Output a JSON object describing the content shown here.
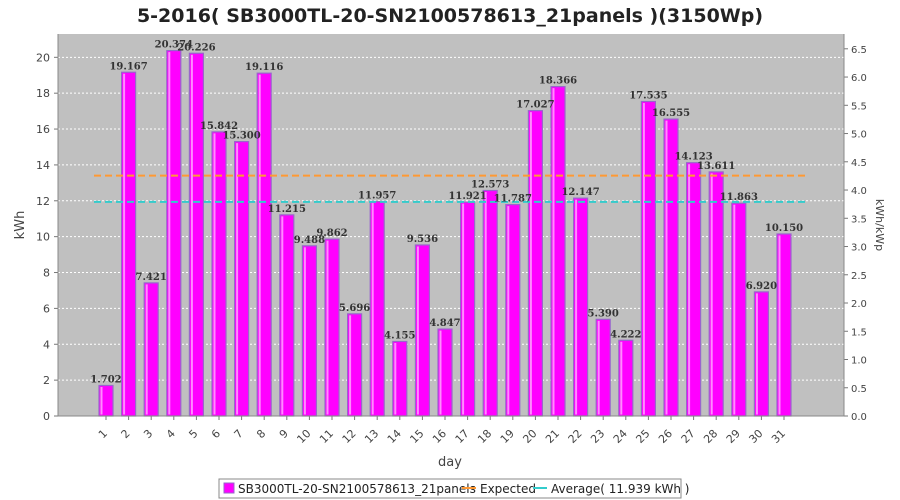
{
  "chart_data": {
    "type": "bar",
    "title": "5-2016( SB3000TL-20-SN2100578613_21panels )(3150Wp)",
    "xlabel": "day",
    "ylabel": "kWh",
    "y2label": "kWh/kWp",
    "categories": [
      "1",
      "2",
      "3",
      "4",
      "5",
      "6",
      "7",
      "8",
      "9",
      "10",
      "11",
      "12",
      "13",
      "14",
      "15",
      "16",
      "17",
      "18",
      "19",
      "20",
      "21",
      "22",
      "23",
      "24",
      "25",
      "26",
      "27",
      "28",
      "29",
      "30",
      "31"
    ],
    "series": [
      {
        "name": "SB3000TL-20-SN2100578613_21panels",
        "color": "#ff00ff",
        "values": [
          1.702,
          19.167,
          7.421,
          20.374,
          20.226,
          15.842,
          15.3,
          19.116,
          11.215,
          9.488,
          9.862,
          5.696,
          11.957,
          4.155,
          9.536,
          4.847,
          11.921,
          12.573,
          11.787,
          17.027,
          18.366,
          12.147,
          5.39,
          4.222,
          17.535,
          16.555,
          14.123,
          13.611,
          11.863,
          6.92,
          10.15
        ],
        "labels": [
          "1.702",
          "19.167",
          "7.421",
          "20.374",
          "20.226",
          "15.842",
          "15.300",
          "19.116",
          "11.215",
          "9.488",
          "9.862",
          "5.696",
          "11.957",
          "4.155",
          "9.536",
          "4.847",
          "11.921",
          "12.573",
          "11.787",
          "17.027",
          "18.366",
          "12.147",
          "5.390",
          "4.222",
          "17.535",
          "16.555",
          "14.123",
          "13.611",
          "11.863",
          "6.920",
          "10.150"
        ]
      }
    ],
    "expected": {
      "name": "Expected",
      "value": 13.4,
      "color": "#ff9933"
    },
    "average": {
      "name": "Average( 11.939 kWh )",
      "value": 11.939,
      "color": "#33cccc"
    },
    "ylim": [
      0,
      21.3
    ],
    "yticks": [
      "0",
      "2",
      "4",
      "6",
      "8",
      "10",
      "12",
      "14",
      "16",
      "18",
      "20"
    ],
    "y2lim": [
      0,
      6.762
    ],
    "y2ticks": [
      "0.0",
      "0.5",
      "1.0",
      "1.5",
      "2.0",
      "2.5",
      "3.0",
      "3.5",
      "4.0",
      "4.5",
      "5.0",
      "5.5",
      "6.0",
      "6.5"
    ],
    "grid": true,
    "legend_position": "bottom"
  }
}
